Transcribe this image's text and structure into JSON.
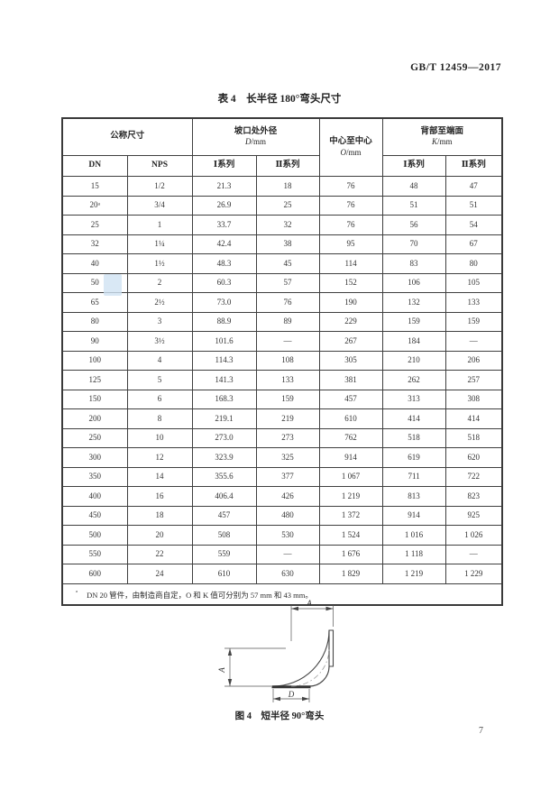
{
  "page": {
    "doc_number": "GB/T 12459—2017",
    "page_number": "7"
  },
  "table": {
    "title": "表 4　长半径 180°弯头尺寸",
    "header": {
      "nominal": "公称尺寸",
      "od": "坡口处外径",
      "od_sym": "D",
      "center": "中心至中心",
      "center_sym": "O",
      "back": "背部至端面",
      "back_sym": "K",
      "unit": "/mm",
      "dn": "DN",
      "nps": "NPS",
      "series1": "Ⅰ系列",
      "series2": "Ⅱ系列"
    },
    "rows": [
      [
        "15",
        "1/2",
        "21.3",
        "18",
        "76",
        "48",
        "47"
      ],
      [
        "20ᵃ",
        "3/4",
        "26.9",
        "25",
        "76",
        "51",
        "51"
      ],
      [
        "25",
        "1",
        "33.7",
        "32",
        "76",
        "56",
        "54"
      ],
      [
        "32",
        "1¼",
        "42.4",
        "38",
        "95",
        "70",
        "67"
      ],
      [
        "40",
        "1½",
        "48.3",
        "45",
        "114",
        "83",
        "80"
      ],
      [
        "50",
        "2",
        "60.3",
        "57",
        "152",
        "106",
        "105"
      ],
      [
        "65",
        "2½",
        "73.0",
        "76",
        "190",
        "132",
        "133"
      ],
      [
        "80",
        "3",
        "88.9",
        "89",
        "229",
        "159",
        "159"
      ],
      [
        "90",
        "3½",
        "101.6",
        "—",
        "267",
        "184",
        "—"
      ],
      [
        "100",
        "4",
        "114.3",
        "108",
        "305",
        "210",
        "206"
      ],
      [
        "125",
        "5",
        "141.3",
        "133",
        "381",
        "262",
        "257"
      ],
      [
        "150",
        "6",
        "168.3",
        "159",
        "457",
        "313",
        "308"
      ],
      [
        "200",
        "8",
        "219.1",
        "219",
        "610",
        "414",
        "414"
      ],
      [
        "250",
        "10",
        "273.0",
        "273",
        "762",
        "518",
        "518"
      ],
      [
        "300",
        "12",
        "323.9",
        "325",
        "914",
        "619",
        "620"
      ],
      [
        "350",
        "14",
        "355.6",
        "377",
        "1 067",
        "711",
        "722"
      ],
      [
        "400",
        "16",
        "406.4",
        "426",
        "1 219",
        "813",
        "823"
      ],
      [
        "450",
        "18",
        "457",
        "480",
        "1 372",
        "914",
        "925"
      ],
      [
        "500",
        "20",
        "508",
        "530",
        "1 524",
        "1 016",
        "1 026"
      ],
      [
        "550",
        "22",
        "559",
        "—",
        "1 676",
        "1 118",
        "—"
      ],
      [
        "600",
        "24",
        "610",
        "630",
        "1 829",
        "1 219",
        "1 229"
      ]
    ],
    "footnote": {
      "marker": "ᵃ",
      "text": "DN 20 管件，由制造商自定，O 和 K 值可分别为 57 mm 和 43 mm。"
    }
  },
  "figure": {
    "caption": "图 4　短半径 90°弯头",
    "dim_top": "A",
    "dim_left": "A",
    "dim_bottom": "D"
  }
}
